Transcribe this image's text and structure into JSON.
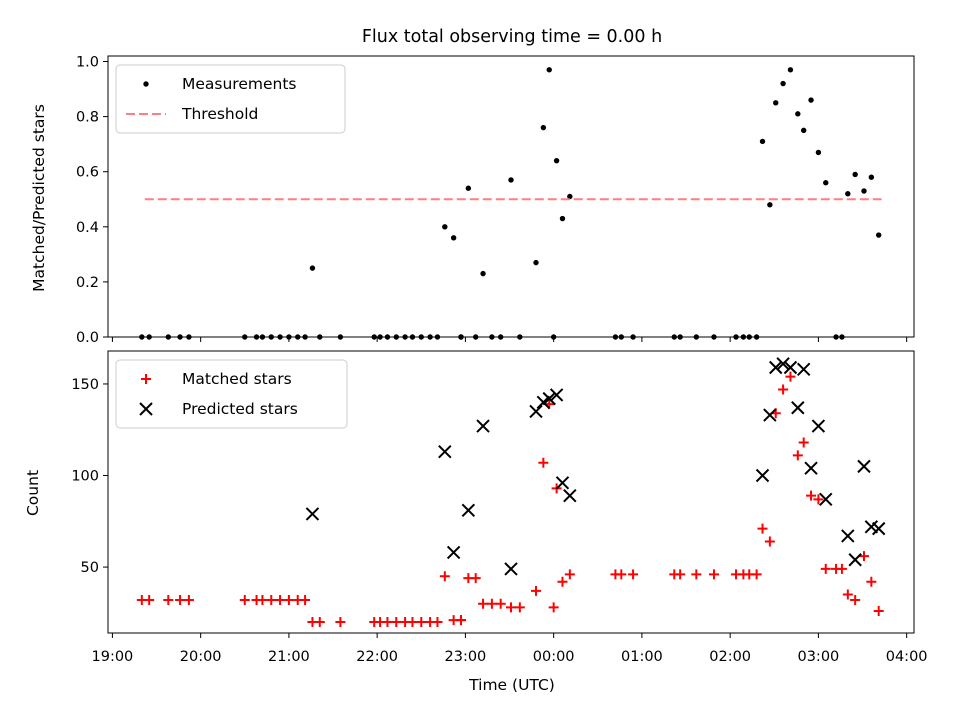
{
  "chart_data": [
    {
      "type": "scatter",
      "title": "Flux total observing time = 0.00 h",
      "xlabel": "",
      "ylabel": "Matched/Predicted stars",
      "ylim": [
        0,
        1.02
      ],
      "xlim": [
        "18:57",
        "04:05"
      ],
      "yticks": [
        "0.0",
        "0.2",
        "0.4",
        "0.6",
        "0.8",
        "1.0"
      ],
      "legend_position": "top-left",
      "colors": {
        "measurements": "#000000",
        "threshold": "#ff7f7f"
      },
      "series": [
        {
          "name": "Measurements",
          "marker": "dot",
          "points": [
            [
              "19:20",
              0.0
            ],
            [
              "19:25",
              0.0
            ],
            [
              "19:38",
              0.0
            ],
            [
              "19:46",
              0.0
            ],
            [
              "19:52",
              0.0
            ],
            [
              "20:30",
              0.0
            ],
            [
              "20:38",
              0.0
            ],
            [
              "20:42",
              0.0
            ],
            [
              "20:48",
              0.0
            ],
            [
              "20:54",
              0.0
            ],
            [
              "21:00",
              0.0
            ],
            [
              "21:06",
              0.0
            ],
            [
              "21:11",
              0.0
            ],
            [
              "21:16",
              0.25
            ],
            [
              "21:21",
              0.0
            ],
            [
              "21:35",
              0.0
            ],
            [
              "21:58",
              0.0
            ],
            [
              "22:02",
              0.0
            ],
            [
              "22:07",
              0.0
            ],
            [
              "22:13",
              0.0
            ],
            [
              "22:19",
              0.0
            ],
            [
              "22:24",
              0.0
            ],
            [
              "22:30",
              0.0
            ],
            [
              "22:36",
              0.0
            ],
            [
              "22:41",
              0.0
            ],
            [
              "22:46",
              0.4
            ],
            [
              "22:52",
              0.36
            ],
            [
              "22:57",
              0.0
            ],
            [
              "22:57",
              0.0
            ],
            [
              "23:02",
              0.54
            ],
            [
              "23:07",
              0.0
            ],
            [
              "23:12",
              0.23
            ],
            [
              "23:18",
              0.0
            ],
            [
              "23:24",
              0.0
            ],
            [
              "23:31",
              0.57
            ],
            [
              "23:37",
              0.0
            ],
            [
              "23:48",
              0.27
            ],
            [
              "23:53",
              0.76
            ],
            [
              "23:57",
              0.97
            ],
            [
              "00:00",
              0.0
            ],
            [
              "00:02",
              0.64
            ],
            [
              "00:06",
              0.43
            ],
            [
              "00:11",
              0.51
            ],
            [
              "00:42",
              0.0
            ],
            [
              "00:46",
              0.0
            ],
            [
              "00:54",
              0.0
            ],
            [
              "01:22",
              0.0
            ],
            [
              "01:26",
              0.0
            ],
            [
              "01:37",
              0.0
            ],
            [
              "01:49",
              0.0
            ],
            [
              "02:04",
              0.0
            ],
            [
              "02:09",
              0.0
            ],
            [
              "02:13",
              0.0
            ],
            [
              "02:18",
              0.0
            ],
            [
              "02:22",
              0.71
            ],
            [
              "02:27",
              0.48
            ],
            [
              "02:31",
              0.85
            ],
            [
              "02:36",
              0.92
            ],
            [
              "02:41",
              0.97
            ],
            [
              "02:46",
              0.81
            ],
            [
              "02:50",
              0.75
            ],
            [
              "02:55",
              0.86
            ],
            [
              "03:00",
              0.67
            ],
            [
              "03:05",
              0.56
            ],
            [
              "03:12",
              0.0
            ],
            [
              "03:16",
              0.0
            ],
            [
              "03:20",
              0.52
            ],
            [
              "03:25",
              0.59
            ],
            [
              "03:31",
              0.53
            ],
            [
              "03:36",
              0.58
            ],
            [
              "03:41",
              0.37
            ]
          ]
        },
        {
          "name": "Threshold",
          "style": "dashed-line",
          "points": [
            [
              "19:22",
              0.5
            ],
            [
              "03:43",
              0.5
            ]
          ]
        }
      ]
    },
    {
      "type": "scatter",
      "title": "",
      "xlabel": "Time (UTC)",
      "ylabel": "Count",
      "ylim": [
        14,
        168
      ],
      "xlim": [
        "18:57",
        "04:05"
      ],
      "yticks": [
        "50",
        "100",
        "150"
      ],
      "xticks": [
        "19:00",
        "20:00",
        "21:00",
        "22:00",
        "23:00",
        "00:00",
        "01:00",
        "02:00",
        "03:00",
        "04:00"
      ],
      "legend_position": "top-left",
      "colors": {
        "matched": "#ff0000",
        "predicted": "#000000"
      },
      "series": [
        {
          "name": "Matched stars",
          "marker": "plus",
          "points": [
            [
              "19:20",
              32
            ],
            [
              "19:25",
              32
            ],
            [
              "19:38",
              32
            ],
            [
              "19:46",
              32
            ],
            [
              "19:52",
              32
            ],
            [
              "20:30",
              32
            ],
            [
              "20:38",
              32
            ],
            [
              "20:42",
              32
            ],
            [
              "20:48",
              32
            ],
            [
              "20:54",
              32
            ],
            [
              "21:00",
              32
            ],
            [
              "21:06",
              32
            ],
            [
              "21:11",
              32
            ],
            [
              "21:16",
              20
            ],
            [
              "21:21",
              20
            ],
            [
              "21:35",
              20
            ],
            [
              "21:58",
              20
            ],
            [
              "22:02",
              20
            ],
            [
              "22:07",
              20
            ],
            [
              "22:13",
              20
            ],
            [
              "22:19",
              20
            ],
            [
              "22:24",
              20
            ],
            [
              "22:30",
              20
            ],
            [
              "22:36",
              20
            ],
            [
              "22:41",
              20
            ],
            [
              "22:46",
              45
            ],
            [
              "22:52",
              21
            ],
            [
              "22:57",
              21
            ],
            [
              "22:57",
              21
            ],
            [
              "23:02",
              44
            ],
            [
              "23:07",
              44
            ],
            [
              "23:12",
              30
            ],
            [
              "23:18",
              30
            ],
            [
              "23:24",
              30
            ],
            [
              "23:31",
              28
            ],
            [
              "23:37",
              28
            ],
            [
              "23:48",
              37
            ],
            [
              "23:53",
              107
            ],
            [
              "23:57",
              139
            ],
            [
              "00:00",
              28
            ],
            [
              "00:02",
              93
            ],
            [
              "00:06",
              42
            ],
            [
              "00:11",
              46
            ],
            [
              "00:42",
              46
            ],
            [
              "00:46",
              46
            ],
            [
              "00:54",
              46
            ],
            [
              "01:22",
              46
            ],
            [
              "01:26",
              46
            ],
            [
              "01:37",
              46
            ],
            [
              "01:49",
              46
            ],
            [
              "02:04",
              46
            ],
            [
              "02:09",
              46
            ],
            [
              "02:13",
              46
            ],
            [
              "02:18",
              46
            ],
            [
              "02:22",
              71
            ],
            [
              "02:27",
              64
            ],
            [
              "02:31",
              134
            ],
            [
              "02:36",
              147
            ],
            [
              "02:41",
              154
            ],
            [
              "02:46",
              111
            ],
            [
              "02:50",
              118
            ],
            [
              "02:55",
              89
            ],
            [
              "03:00",
              87
            ],
            [
              "03:05",
              49
            ],
            [
              "03:12",
              49
            ],
            [
              "03:16",
              49
            ],
            [
              "03:20",
              35
            ],
            [
              "03:25",
              32
            ],
            [
              "03:31",
              56
            ],
            [
              "03:36",
              42
            ],
            [
              "03:41",
              26
            ]
          ]
        },
        {
          "name": "Predicted stars",
          "marker": "x",
          "points": [
            [
              "21:16",
              79
            ],
            [
              "22:46",
              113
            ],
            [
              "22:52",
              58
            ],
            [
              "23:02",
              81
            ],
            [
              "23:12",
              127
            ],
            [
              "23:31",
              49
            ],
            [
              "23:48",
              135
            ],
            [
              "23:53",
              140
            ],
            [
              "23:57",
              142
            ],
            [
              "00:02",
              144
            ],
            [
              "00:06",
              96
            ],
            [
              "00:11",
              89
            ],
            [
              "02:22",
              100
            ],
            [
              "02:27",
              133
            ],
            [
              "02:31",
              159
            ],
            [
              "02:36",
              161
            ],
            [
              "02:41",
              159
            ],
            [
              "02:46",
              137
            ],
            [
              "02:50",
              158
            ],
            [
              "02:55",
              104
            ],
            [
              "03:00",
              127
            ],
            [
              "03:05",
              87
            ],
            [
              "03:20",
              67
            ],
            [
              "03:25",
              54
            ],
            [
              "03:31",
              105
            ],
            [
              "03:36",
              72
            ],
            [
              "03:41",
              71
            ]
          ]
        }
      ]
    }
  ]
}
